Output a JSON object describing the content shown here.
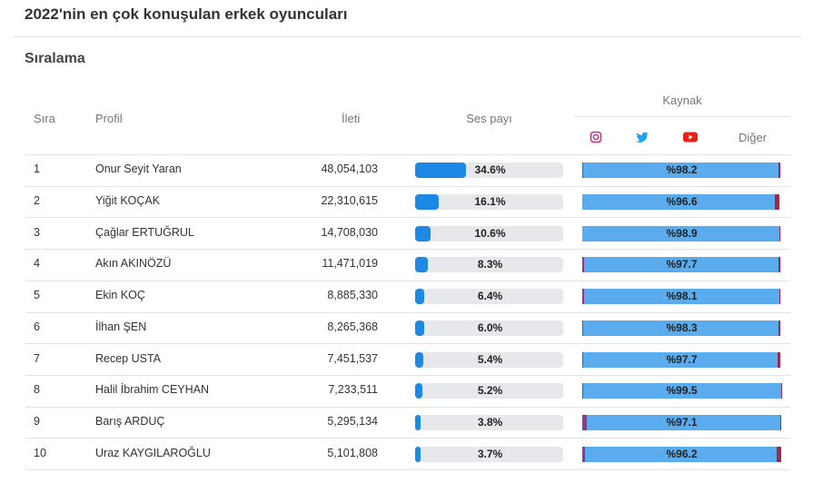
{
  "header": {
    "title": "2022'nin en çok konuşulan erkek oyuncuları"
  },
  "section": {
    "title": "Sıralama"
  },
  "table": {
    "columns": {
      "rank": "Sıra",
      "profile": "Profil",
      "posts": "İleti",
      "share": "Ses payı",
      "source": "Kaynak",
      "other": "Diğer"
    },
    "rows": [
      {
        "rank": 1,
        "name": "Onur Seyit Yaran",
        "posts": "48,054,103",
        "share": 34.6,
        "share_label": "34.6%",
        "instagram": 0.3,
        "twitter": 98.2,
        "twitter_label": "%98.2",
        "youtube": 1.0
      },
      {
        "rank": 2,
        "name": "Yiğit KOÇAK",
        "posts": "22,310,615",
        "share": 16.1,
        "share_label": "16.1%",
        "instagram": 0.2,
        "twitter": 96.6,
        "twitter_label": "%96.6",
        "youtube": 2.5
      },
      {
        "rank": 3,
        "name": "Çağlar ERTUĞRUL",
        "posts": "14,708,030",
        "share": 10.6,
        "share_label": "10.6%",
        "instagram": 0.2,
        "twitter": 98.9,
        "twitter_label": "%98.9",
        "youtube": 0.5
      },
      {
        "rank": 4,
        "name": "Akın AKINÖZÜ",
        "posts": "11,471,019",
        "share": 8.3,
        "share_label": "8.3%",
        "instagram": 1.0,
        "twitter": 97.7,
        "twitter_label": "%97.7",
        "youtube": 1.0
      },
      {
        "rank": 5,
        "name": "Ekin KOÇ",
        "posts": "8,885,330",
        "share": 6.4,
        "share_label": "6.4%",
        "instagram": 1.0,
        "twitter": 98.1,
        "twitter_label": "%98.1",
        "youtube": 0.6
      },
      {
        "rank": 6,
        "name": "İlhan ŞEN",
        "posts": "8,265,368",
        "share": 6.0,
        "share_label": "6.0%",
        "instagram": 0.5,
        "twitter": 98.3,
        "twitter_label": "%98.3",
        "youtube": 0.8
      },
      {
        "rank": 7,
        "name": "Recep USTA",
        "posts": "7,451,537",
        "share": 5.4,
        "share_label": "5.4%",
        "instagram": 0.5,
        "twitter": 97.7,
        "twitter_label": "%97.7",
        "youtube": 1.5
      },
      {
        "rank": 8,
        "name": "Halil İbrahim CEYHAN",
        "posts": "7,233,511",
        "share": 5.2,
        "share_label": "5.2%",
        "instagram": 0.3,
        "twitter": 99.5,
        "twitter_label": "%99.5",
        "youtube": 0.2
      },
      {
        "rank": 9,
        "name": "Barış ARDUÇ",
        "posts": "5,295,134",
        "share": 3.8,
        "share_label": "3.8%",
        "instagram": 2.5,
        "twitter": 97.1,
        "twitter_label": "%97.1",
        "youtube": 0.3
      },
      {
        "rank": 10,
        "name": "Uraz KAYGILAROĞLU",
        "posts": "5,101,808",
        "share": 3.7,
        "share_label": "3.7%",
        "instagram": 1.5,
        "twitter": 96.2,
        "twitter_label": "%96.2",
        "youtube": 2.3
      }
    ]
  }
}
